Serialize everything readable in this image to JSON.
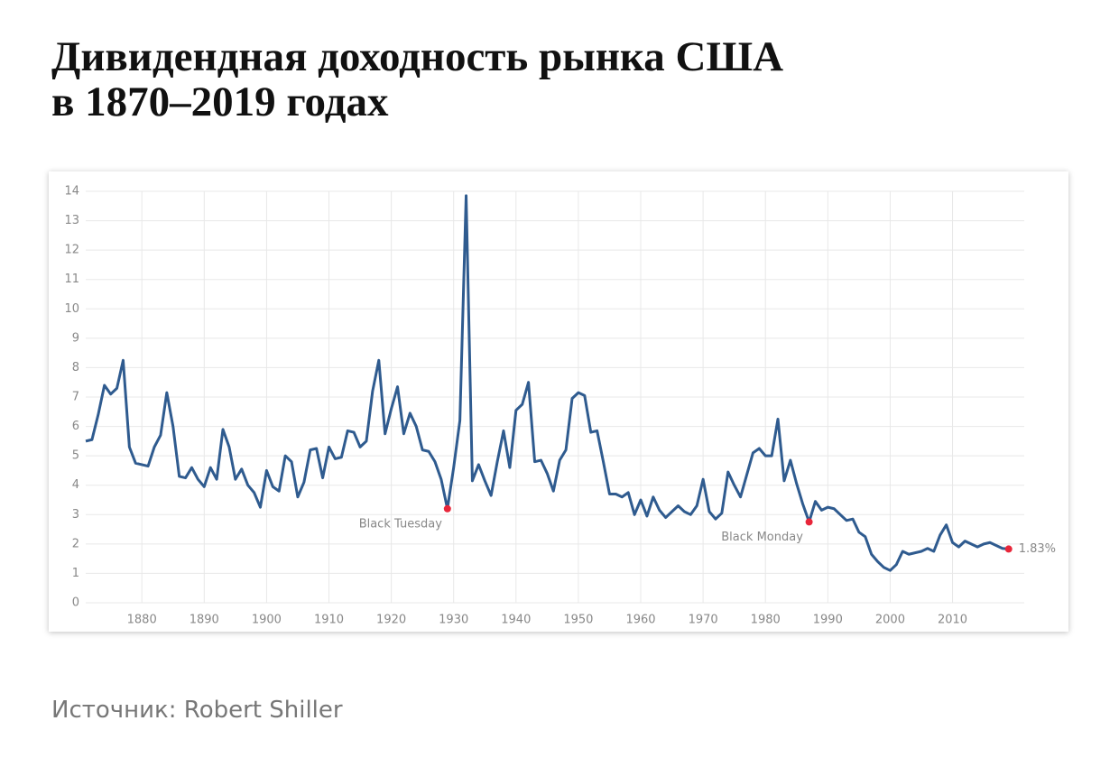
{
  "chart_data": {
    "type": "line",
    "title": [
      "Дивидендная доходность рынка США",
      "в 1870–2019 годах"
    ],
    "source_label": "Источник:",
    "source": "Robert Shiller",
    "x": [
      1871,
      1872,
      1873,
      1874,
      1875,
      1876,
      1877,
      1878,
      1879,
      1880,
      1881,
      1882,
      1883,
      1884,
      1885,
      1886,
      1887,
      1888,
      1889,
      1890,
      1891,
      1892,
      1893,
      1894,
      1895,
      1896,
      1897,
      1898,
      1899,
      1900,
      1901,
      1902,
      1903,
      1904,
      1905,
      1906,
      1907,
      1908,
      1909,
      1910,
      1911,
      1912,
      1913,
      1914,
      1915,
      1916,
      1917,
      1918,
      1919,
      1920,
      1921,
      1922,
      1923,
      1924,
      1925,
      1926,
      1927,
      1928,
      1929,
      1930,
      1931,
      1932,
      1933,
      1934,
      1935,
      1936,
      1937,
      1938,
      1939,
      1940,
      1941,
      1942,
      1943,
      1944,
      1945,
      1946,
      1947,
      1948,
      1949,
      1950,
      1951,
      1952,
      1953,
      1954,
      1955,
      1956,
      1957,
      1958,
      1959,
      1960,
      1961,
      1962,
      1963,
      1964,
      1965,
      1966,
      1967,
      1968,
      1969,
      1970,
      1971,
      1972,
      1973,
      1974,
      1975,
      1976,
      1977,
      1978,
      1979,
      1980,
      1981,
      1982,
      1983,
      1984,
      1985,
      1986,
      1987,
      1988,
      1989,
      1990,
      1991,
      1992,
      1993,
      1994,
      1995,
      1996,
      1997,
      1998,
      1999,
      2000,
      2001,
      2002,
      2003,
      2004,
      2005,
      2006,
      2007,
      2008,
      2009,
      2010,
      2011,
      2012,
      2013,
      2014,
      2015,
      2016,
      2017,
      2018,
      2019
    ],
    "series": [
      {
        "color": "#2f5b8f",
        "values": [
          5.5,
          5.55,
          6.4,
          7.4,
          7.1,
          7.3,
          8.25,
          5.3,
          4.75,
          4.7,
          4.65,
          5.3,
          5.7,
          7.15,
          6.0,
          4.3,
          4.25,
          4.6,
          4.2,
          3.95,
          4.6,
          4.2,
          5.9,
          5.3,
          4.2,
          4.55,
          4.0,
          3.75,
          3.25,
          4.5,
          3.95,
          3.8,
          5.0,
          4.8,
          3.6,
          4.1,
          5.2,
          5.25,
          4.25,
          5.3,
          4.9,
          4.95,
          5.85,
          5.8,
          5.3,
          5.5,
          7.2,
          8.25,
          5.75,
          6.6,
          7.35,
          5.75,
          6.45,
          6.0,
          5.2,
          5.15,
          4.8,
          4.2,
          3.2,
          4.6,
          6.2,
          13.85,
          4.15,
          4.7,
          4.15,
          3.65,
          4.8,
          5.85,
          4.6,
          6.55,
          6.75,
          7.5,
          4.8,
          4.85,
          4.4,
          3.8,
          4.85,
          5.2,
          6.95,
          7.15,
          7.05,
          5.8,
          5.85,
          4.8,
          3.7,
          3.7,
          3.6,
          3.75,
          3.0,
          3.5,
          2.95,
          3.6,
          3.15,
          2.9,
          3.1,
          3.3,
          3.1,
          3.0,
          3.3,
          4.2,
          3.1,
          2.85,
          3.05,
          4.45,
          4.0,
          3.6,
          4.35,
          5.1,
          5.25,
          5.0,
          5.0,
          6.25,
          4.15,
          4.85,
          4.05,
          3.35,
          2.75,
          3.45,
          3.15,
          3.25,
          3.2,
          3.0,
          2.8,
          2.85,
          2.4,
          2.25,
          1.65,
          1.4,
          1.2,
          1.1,
          1.3,
          1.75,
          1.65,
          1.7,
          1.75,
          1.85,
          1.75,
          2.3,
          2.65,
          2.05,
          1.9,
          2.1,
          2.0,
          1.9,
          2.0,
          2.05,
          1.95,
          1.85,
          1.83
        ]
      }
    ],
    "annotations": [
      {
        "label": "Black Tuesday",
        "x": 1929,
        "color": "#e8263a"
      },
      {
        "label": "Black Monday",
        "x": 1987,
        "color": "#e8263a"
      },
      {
        "label": "1.83%",
        "x": 2019,
        "color": "#e8263a"
      }
    ],
    "xlim": [
      1871,
      2021.5
    ],
    "xticks": [
      1880,
      1890,
      1900,
      1910,
      1920,
      1930,
      1940,
      1950,
      1960,
      1970,
      1980,
      1990,
      2000,
      2010
    ],
    "ylim": [
      0,
      14
    ],
    "yticks": [
      0,
      1,
      2,
      3,
      4,
      5,
      6,
      7,
      8,
      9,
      10,
      11,
      12,
      13,
      14
    ],
    "grid": true
  }
}
